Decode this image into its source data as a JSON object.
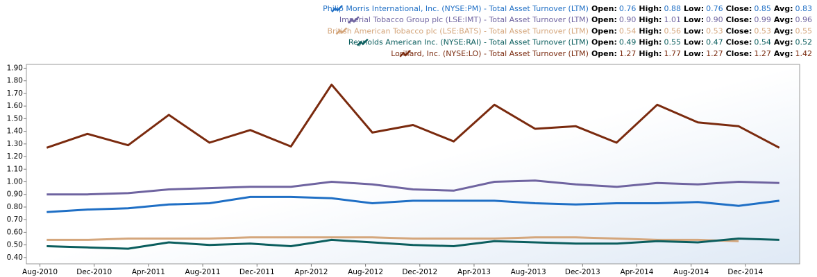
{
  "chart_data": {
    "type": "line",
    "legend_labels": [
      "Open:",
      "High:",
      "Low:",
      "Close:",
      "Avg:"
    ],
    "x": [
      "Aug-2010",
      "Nov-2010",
      "Feb-2011",
      "May-2011",
      "Aug-2011",
      "Nov-2011",
      "Feb-2012",
      "May-2012",
      "Aug-2012",
      "Nov-2012",
      "Feb-2013",
      "May-2013",
      "Aug-2013",
      "Nov-2013",
      "Feb-2014",
      "May-2014",
      "Aug-2014",
      "Nov-2014",
      "Feb-2015"
    ],
    "xlim": [
      "Jul-2010",
      "Apr-2015"
    ],
    "xticks": [
      "Aug-2010",
      "Dec-2010",
      "Apr-2011",
      "Aug-2011",
      "Dec-2011",
      "Apr-2012",
      "Aug-2012",
      "Dec-2012",
      "Apr-2013",
      "Aug-2013",
      "Dec-2013",
      "Apr-2014",
      "Aug-2014",
      "Dec-2014"
    ],
    "ylim": [
      0.35,
      1.93
    ],
    "yticks": [
      {
        "value": 0.4,
        "label": "0.40"
      },
      {
        "value": 0.5,
        "label": "0.50"
      },
      {
        "value": 0.6,
        "label": "0.60"
      },
      {
        "value": 0.7,
        "label": "0.70"
      },
      {
        "value": 0.8,
        "label": "0.80"
      },
      {
        "value": 0.9,
        "label": "0.90"
      },
      {
        "value": 1.0,
        "label": "1.00"
      },
      {
        "value": 1.1,
        "label": "1.10"
      },
      {
        "value": 1.2,
        "label": "1.20"
      },
      {
        "value": 1.3,
        "label": "1.30"
      },
      {
        "value": 1.4,
        "label": "1.40"
      },
      {
        "value": 1.5,
        "label": "1.50"
      },
      {
        "value": 1.6,
        "label": "1.60"
      },
      {
        "value": 1.7,
        "label": "1.70"
      },
      {
        "value": 1.8,
        "label": "1.80"
      },
      {
        "value": 1.9,
        "label": "1.90"
      }
    ],
    "series": [
      {
        "name": "Philip Morris International, Inc. (NYSE:PM) - Total Asset Turnover (LTM)",
        "color": "#1f6fc5",
        "stats": [
          "0.76",
          "0.88",
          "0.76",
          "0.85",
          "0.83"
        ],
        "values": [
          0.76,
          0.78,
          0.79,
          0.82,
          0.83,
          0.88,
          0.88,
          0.87,
          0.83,
          0.85,
          0.85,
          0.85,
          0.83,
          0.82,
          0.83,
          0.83,
          0.84,
          0.81,
          0.85
        ]
      },
      {
        "name": "Imperial Tobacco Group plc (LSE:IMT) - Total Asset Turnover (LTM)",
        "color": "#6f64a0",
        "stats": [
          "0.90",
          "1.01",
          "0.90",
          "0.99",
          "0.96"
        ],
        "values": [
          0.9,
          0.9,
          0.91,
          0.94,
          0.95,
          0.96,
          0.96,
          1.0,
          0.98,
          0.94,
          0.93,
          1.0,
          1.01,
          0.98,
          0.96,
          0.99,
          0.98,
          1.0,
          0.99
        ]
      },
      {
        "name": "British American Tobacco plc (LSE:BATS) - Total Asset Turnover (LTM)",
        "color": "#d4a67c",
        "stats": [
          "0.54",
          "0.56",
          "0.53",
          "0.53",
          "0.55"
        ],
        "values": [
          0.54,
          0.54,
          0.55,
          0.55,
          0.55,
          0.56,
          0.56,
          0.56,
          0.56,
          0.55,
          0.55,
          0.55,
          0.56,
          0.56,
          0.55,
          0.54,
          0.54,
          0.53,
          null
        ]
      },
      {
        "name": "Reynolds American Inc. (NYSE:RAI) - Total Asset Turnover (LTM)",
        "color": "#0b5e5e",
        "stats": [
          "0.49",
          "0.55",
          "0.47",
          "0.54",
          "0.52"
        ],
        "values": [
          0.49,
          0.48,
          0.47,
          0.52,
          0.5,
          0.51,
          0.49,
          0.54,
          0.52,
          0.5,
          0.49,
          0.53,
          0.52,
          0.51,
          0.51,
          0.53,
          0.52,
          0.55,
          0.54
        ]
      },
      {
        "name": "Lorillard, Inc. (NYSE:LO) - Total Asset Turnover (LTM)",
        "color": "#7a2a0e",
        "stats": [
          "1.27",
          "1.77",
          "1.27",
          "1.27",
          "1.42"
        ],
        "values": [
          1.27,
          1.38,
          1.29,
          1.53,
          1.31,
          1.41,
          1.28,
          1.77,
          1.39,
          1.45,
          1.32,
          1.61,
          1.42,
          1.44,
          1.31,
          1.61,
          1.47,
          1.44,
          1.27
        ]
      }
    ]
  }
}
